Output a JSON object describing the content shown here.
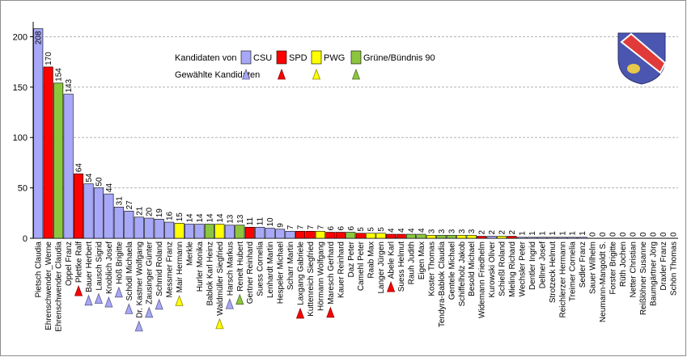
{
  "chart_data": {
    "type": "bar",
    "ylim": [
      0,
      210
    ],
    "yticks": [
      0,
      50,
      100,
      150,
      200
    ],
    "grid": true,
    "legend_position": "top-center",
    "legend": {
      "row1_label": "Kandidaten von",
      "row2_label": "Gewählte Kandidaten",
      "parties": [
        "CSU",
        "SPD",
        "PWG",
        "Grüne/Bündnis 90"
      ]
    },
    "colors": {
      "CSU": "#a8a8f8",
      "SPD": "#ff0000",
      "PWG": "#ffff00",
      "Grüne/Bündnis 90": "#8cc63f"
    },
    "crest_colors": {
      "shield": "#4a56b0",
      "band": "#e03a3a",
      "band_border": "#ffffff",
      "figure": "#e6c84a"
    },
    "candidates": [
      {
        "name": "Pietsch Claudia",
        "value": 208,
        "party": "CSU",
        "elected": false
      },
      {
        "name": "Ehrenschwender_Werne",
        "value": 170,
        "party": "SPD",
        "elected": false
      },
      {
        "name": "Ehrenschwender Claudia",
        "value": 154,
        "party": "Grüne/Bündnis 90",
        "elected": false
      },
      {
        "name": "Oppel Franz",
        "value": 143,
        "party": "CSU",
        "elected": false
      },
      {
        "name": "Plettke Ralf",
        "value": 64,
        "party": "SPD",
        "elected": true
      },
      {
        "name": "Bauer Herbert",
        "value": 54,
        "party": "CSU",
        "elected": true
      },
      {
        "name": "Lausch Sigrid",
        "value": 50,
        "party": "CSU",
        "elected": true
      },
      {
        "name": "Knoblich Josef",
        "value": 44,
        "party": "CSU",
        "elected": true
      },
      {
        "name": "Höß Brigitte",
        "value": 31,
        "party": "CSU",
        "elected": true
      },
      {
        "name": "Schödl Michaela",
        "value": 27,
        "party": "CSU",
        "elected": true
      },
      {
        "name": "Dr. Kastner Wolfgang",
        "value": 21,
        "party": "CSU",
        "elected": true
      },
      {
        "name": "Zausinger Günter",
        "value": 20,
        "party": "CSU",
        "elected": true
      },
      {
        "name": "Schmid Roland",
        "value": 19,
        "party": "CSU",
        "elected": true
      },
      {
        "name": "Messmer Franz",
        "value": 16,
        "party": "CSU",
        "elected": false
      },
      {
        "name": "Mair Hermann",
        "value": 15,
        "party": "PWG",
        "elected": true
      },
      {
        "name": "Merkle",
        "value": 14,
        "party": "CSU",
        "elected": false
      },
      {
        "name": "Hurler Monika",
        "value": 14,
        "party": "CSU",
        "elected": false
      },
      {
        "name": "Bablok Karl Heinz",
        "value": 14,
        "party": "Grüne/Bündnis 90",
        "elected": false
      },
      {
        "name": "Waldmüller Siegfried",
        "value": 14,
        "party": "PWG",
        "elected": true
      },
      {
        "name": "Harsch Markus",
        "value": 13,
        "party": "CSU",
        "elected": true
      },
      {
        "name": "Renelt Hubert",
        "value": 13,
        "party": "Grüne/Bündnis 90",
        "elected": true
      },
      {
        "name": "Gertner Reinhard",
        "value": 11,
        "party": "SPD",
        "elected": false
      },
      {
        "name": "Suess Cornelia",
        "value": 11,
        "party": "CSU",
        "elected": false
      },
      {
        "name": "Lenhardt Martin",
        "value": 10,
        "party": "CSU",
        "elected": false
      },
      {
        "name": "Hespeler Michael",
        "value": 9,
        "party": "CSU",
        "elected": false
      },
      {
        "name": "Scharr Martin",
        "value": 7,
        "party": "CSU",
        "elected": false
      },
      {
        "name": "Laxgang Gabriele",
        "value": 7,
        "party": "SPD",
        "elected": true
      },
      {
        "name": "Kuttenreich Siegfried",
        "value": 7,
        "party": "SPD",
        "elected": false
      },
      {
        "name": "Hörmann Wolfgang",
        "value": 7,
        "party": "PWG",
        "elected": false
      },
      {
        "name": "Maresch Gerhard",
        "value": 6,
        "party": "SPD",
        "elected": true
      },
      {
        "name": "Kauer Reinhard",
        "value": 6,
        "party": "SPD",
        "elected": false
      },
      {
        "name": "Daz Peter",
        "value": 6,
        "party": "Grüne/Bündnis 90",
        "elected": false
      },
      {
        "name": "Camehl Peter",
        "value": 5,
        "party": "SPD",
        "elected": false
      },
      {
        "name": "Raab Max",
        "value": 5,
        "party": "PWG",
        "elected": false
      },
      {
        "name": "Langer Jürgen",
        "value": 5,
        "party": "PWG",
        "elected": false
      },
      {
        "name": "Abele Karl",
        "value": 4,
        "party": "SPD",
        "elected": true
      },
      {
        "name": "Suess Helmut",
        "value": 4,
        "party": "SPD",
        "elected": false
      },
      {
        "name": "Rauh Judith",
        "value": 4,
        "party": "Grüne/Bündnis 90",
        "elected": false
      },
      {
        "name": "Eigen Max",
        "value": 4,
        "party": "Grüne/Bündnis 90",
        "elected": false
      },
      {
        "name": "Koster Thomas",
        "value": 3,
        "party": "PWG",
        "elected": false
      },
      {
        "name": "Tendyra-Bablok Claudia",
        "value": 3,
        "party": "Grüne/Bündnis 90",
        "elected": false
      },
      {
        "name": "Gentele Michael",
        "value": 3,
        "party": "Grüne/Bündnis 90",
        "elected": false
      },
      {
        "name": "Schiffelholz Jakob",
        "value": 3,
        "party": "PWG",
        "elected": false
      },
      {
        "name": "Besold Michael",
        "value": 3,
        "party": "PWG",
        "elected": false
      },
      {
        "name": "Widemann Friedhelm",
        "value": 2,
        "party": "SPD",
        "elected": false
      },
      {
        "name": "Kurowski Oliver",
        "value": 2,
        "party": "CSU",
        "elected": false
      },
      {
        "name": "Schießl Roland",
        "value": 2,
        "party": "PWG",
        "elected": false
      },
      {
        "name": "Mieling Richard",
        "value": 2,
        "party": "SPD",
        "elected": false
      },
      {
        "name": "Wechsler Peter",
        "value": 1,
        "party": "CSU",
        "elected": false
      },
      {
        "name": "Dentler Ingrid",
        "value": 1,
        "party": "CSU",
        "elected": false
      },
      {
        "name": "Dellner Josef",
        "value": 1,
        "party": "CSU",
        "elected": false
      },
      {
        "name": "Strotzeck Helmut",
        "value": 1,
        "party": "CSU",
        "elected": false
      },
      {
        "name": "Reichlerzer Hermann",
        "value": 1,
        "party": "CSU",
        "elected": false
      },
      {
        "name": "Treimer Cornelia",
        "value": 1,
        "party": "CSU",
        "elected": false
      },
      {
        "name": "Sedler Franz",
        "value": 1,
        "party": "CSU",
        "elected": false
      },
      {
        "name": "Sauer Wilhelm",
        "value": 0,
        "party": "CSU",
        "elected": false
      },
      {
        "name": "Neumann-Mangoldt S.",
        "value": 0,
        "party": "CSU",
        "elected": false
      },
      {
        "name": "Forster Brigitte",
        "value": 0,
        "party": "CSU",
        "elected": false
      },
      {
        "name": "Rüth Jochen",
        "value": 0,
        "party": "CSU",
        "elected": false
      },
      {
        "name": "Netter Christian",
        "value": 0,
        "party": "CSU",
        "elected": false
      },
      {
        "name": "Reißlöhner Susanne",
        "value": 0,
        "party": "CSU",
        "elected": false
      },
      {
        "name": "Baumgärtner Jörg",
        "value": 0,
        "party": "CSU",
        "elected": false
      },
      {
        "name": "Draxler Franz",
        "value": 0,
        "party": "CSU",
        "elected": false
      },
      {
        "name": "Schön Thomas",
        "value": 0,
        "party": "CSU",
        "elected": false
      }
    ]
  }
}
